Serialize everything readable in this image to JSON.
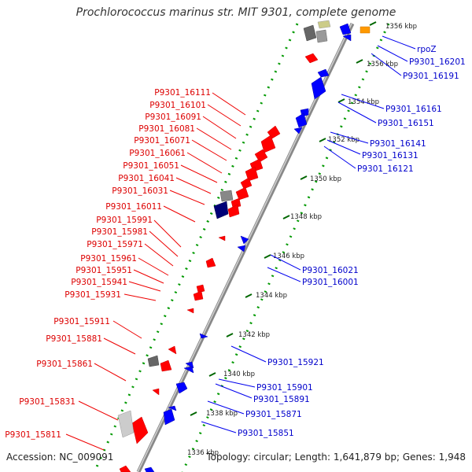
{
  "title": "Prochlorococcus marinus str. MIT 9301, complete genome",
  "footer": {
    "accession": "Accession: NC_009091",
    "summary": "Topology: circular; Length: 1,641,879 bp; Genes: 1,948"
  },
  "scale_labels": [
    "1336 kbp",
    "1338 kbp",
    "1340 kbp",
    "1342 kbp",
    "1344 kbp",
    "1346 kbp",
    "1348 kbp",
    "1350 kbp",
    "1352 kbp",
    "1354 kbp",
    "1356 kbp"
  ],
  "left_genes": [
    "P9301_16111",
    "P9301_16101",
    "P9301_16091",
    "P9301_16081",
    "P9301_16071",
    "P9301_16061",
    "P9301_16051",
    "P9301_16041",
    "P9301_16031",
    "P9301_16011",
    "P9301_15991",
    "P9301_15981",
    "P9301_15971",
    "P9301_15961",
    "P9301_15951",
    "P9301_15941",
    "P9301_15931",
    "P9301_15911",
    "P9301_15881",
    "P9301_15861",
    "P9301_15831",
    "P9301_15811"
  ],
  "right_genes": [
    "rpoZ",
    "P9301_16201",
    "P9301_16191",
    "P9301_16161",
    "P9301_16151",
    "P9301_16141",
    "P9301_16131",
    "P9301_16121",
    "P9301_16021",
    "P9301_16001",
    "P9301_15921",
    "P9301_15901",
    "P9301_15891",
    "P9301_15871",
    "P9301_15851"
  ],
  "colors": {
    "forward_strand": "#ff0000",
    "reverse_strand": "#0000ff",
    "backbone": "#888888",
    "dots": "#009900",
    "tick": "#006600",
    "rrna": "#999999",
    "trna": "#ff9900"
  }
}
